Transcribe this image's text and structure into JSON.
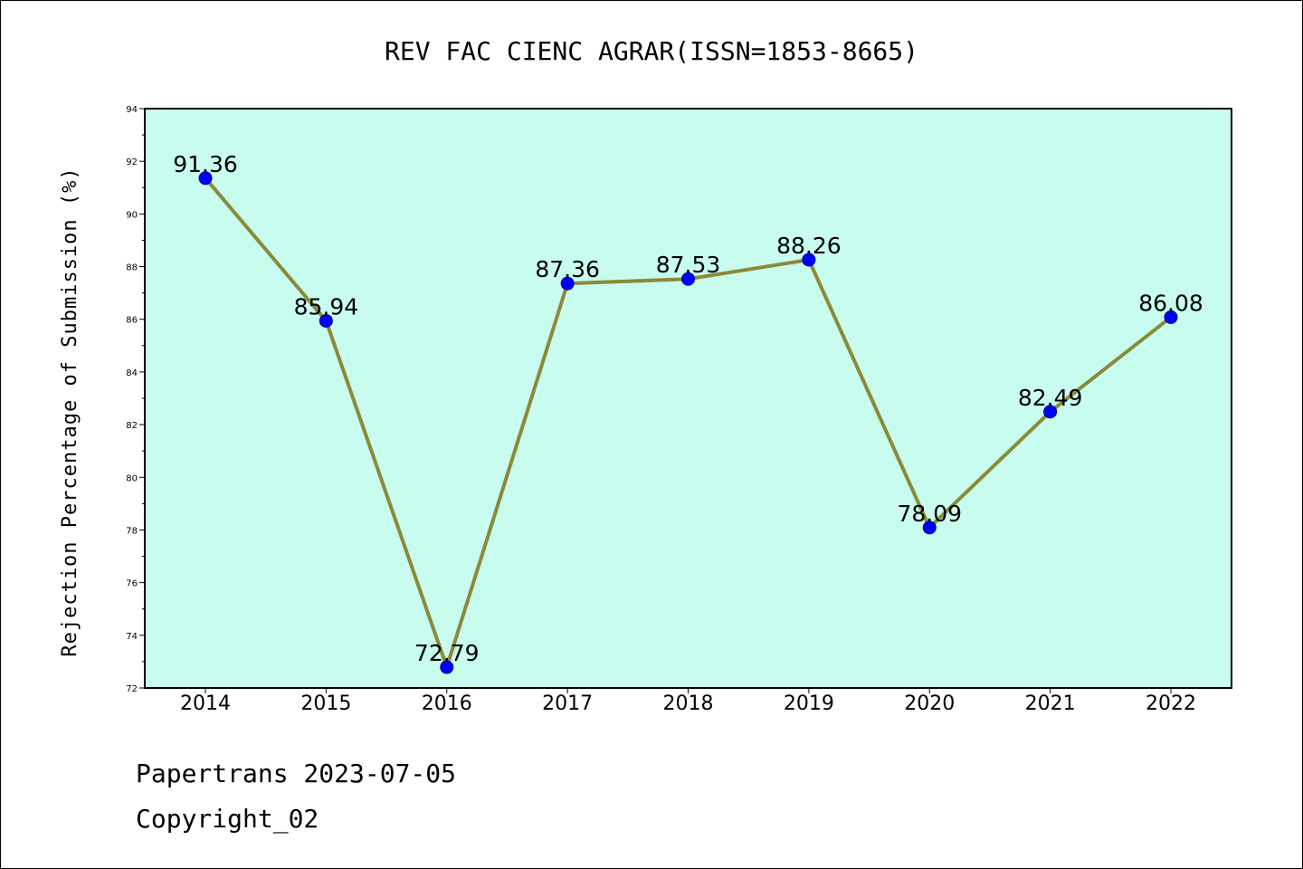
{
  "chart_data": {
    "type": "line",
    "title": "REV FAC CIENC AGRAR(ISSN=1853-8665)",
    "xlabel": "",
    "ylabel": "Rejection Percentage of Submission (%)",
    "categories": [
      "2014",
      "2015",
      "2016",
      "2017",
      "2018",
      "2019",
      "2020",
      "2021",
      "2022"
    ],
    "values": [
      91.36,
      85.94,
      72.79,
      87.36,
      87.53,
      88.26,
      78.09,
      82.49,
      86.08
    ],
    "data_labels": [
      "91.36",
      "85.94",
      "72.79",
      "87.36",
      "87.53",
      "88.26",
      "78.09",
      "82.49",
      "86.08"
    ],
    "ylim": [
      72,
      94
    ],
    "y_ticks": [
      "72",
      "74",
      "76",
      "78",
      "80",
      "82",
      "84",
      "86",
      "88",
      "90",
      "92",
      "94"
    ],
    "grid": false,
    "legend": false,
    "colors": {
      "plot_background": "#c8fcee",
      "line": "#8b8a3a",
      "marker": "#0000ff",
      "marker_edge": "#00008b",
      "axes": "#000000"
    }
  },
  "footer": {
    "line1": "Papertrans 2023-07-05",
    "line2": "Copyright_02"
  }
}
